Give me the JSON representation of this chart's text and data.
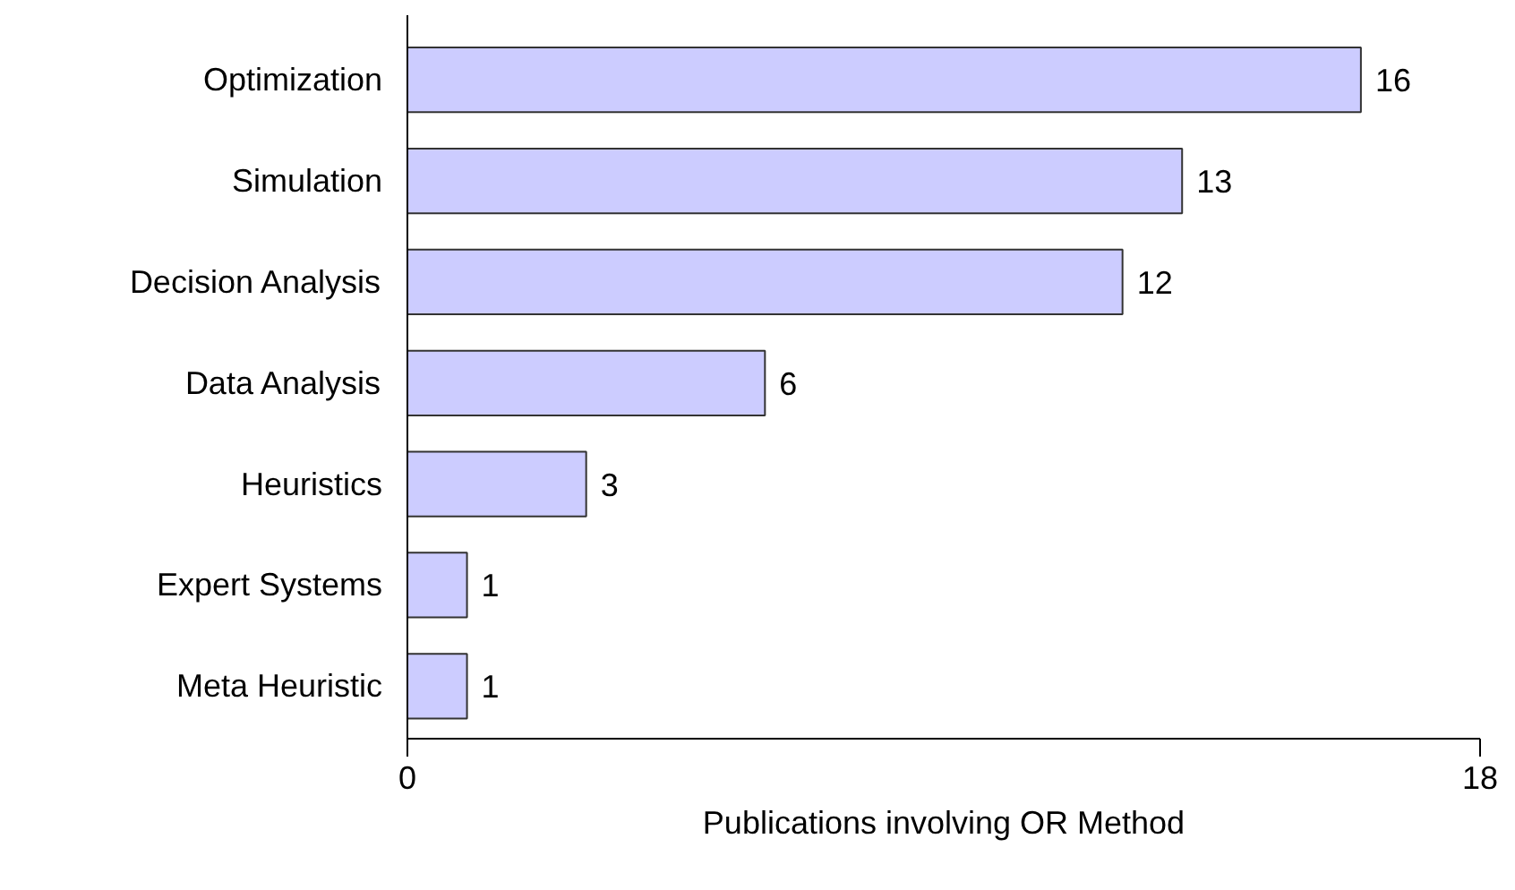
{
  "chart_data": {
    "type": "bar",
    "orientation": "horizontal",
    "xlabel": "Publications involving OR Method",
    "categories": [
      "Optimization",
      "Simulation",
      "Decision Analysis",
      "Data Analysis",
      "Heuristics",
      "Expert Systems",
      "Meta Heuristic"
    ],
    "values": [
      16,
      13,
      12,
      6,
      3,
      1,
      1
    ],
    "color": "#ccccff",
    "xlim": [
      0,
      18
    ],
    "xticks": [
      0,
      18
    ],
    "data_labels": true,
    "grid": false
  }
}
